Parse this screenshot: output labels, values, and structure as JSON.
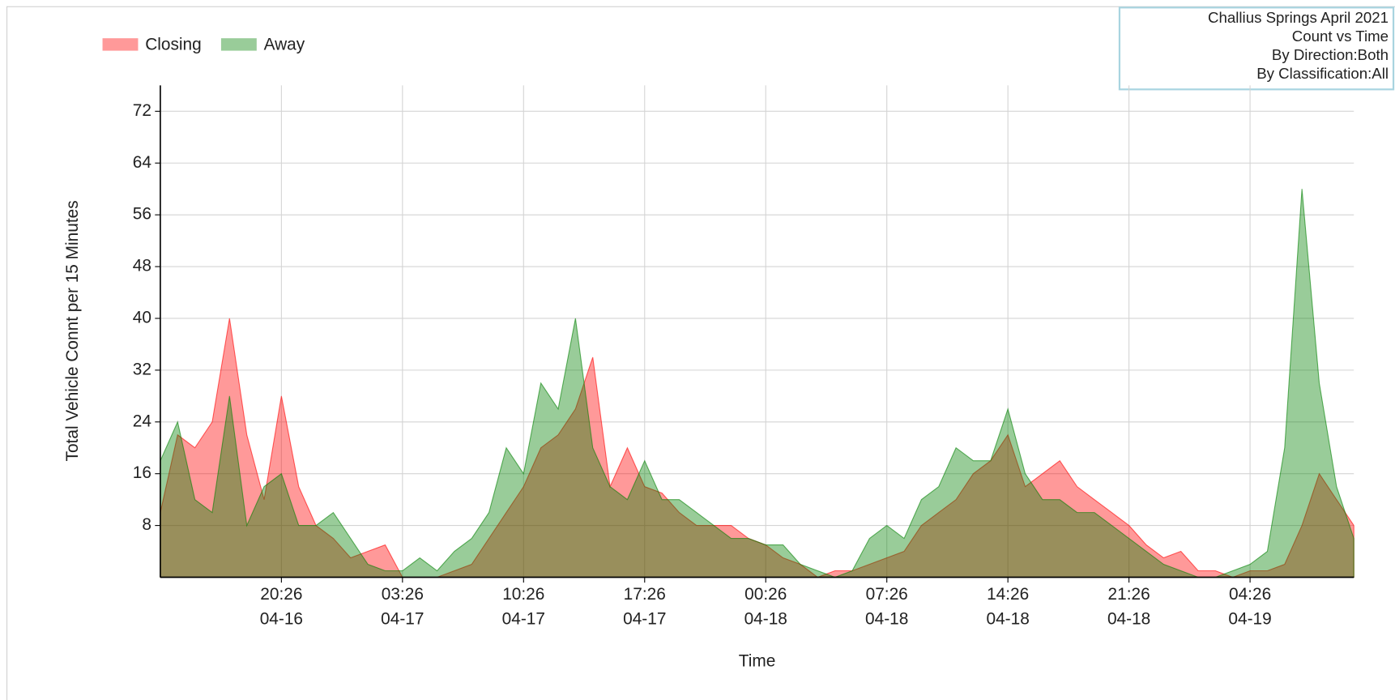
{
  "chart_data": {
    "type": "area",
    "info": [
      "Challius Springs April 2021",
      "Count vs Time",
      "By Direction:Both",
      "By Classification:All"
    ],
    "x_label": "Time",
    "y_label": "Total Vehicle Connt per 15 Minutes",
    "legend": "top-left",
    "grid": true,
    "ylim": [
      0,
      76
    ],
    "yticks": [
      8,
      16,
      24,
      32,
      40,
      48,
      56,
      64,
      72
    ],
    "xlim": [
      "04-16 13:26",
      "04-19 10:26"
    ],
    "xticks": [
      {
        "value": "04-16 20:26",
        "label": [
          "20:26",
          "04-16"
        ]
      },
      {
        "value": "04-17 03:26",
        "label": [
          "03:26",
          "04-17"
        ]
      },
      {
        "value": "04-17 10:26",
        "label": [
          "10:26",
          "04-17"
        ]
      },
      {
        "value": "04-17 17:26",
        "label": [
          "17:26",
          "04-17"
        ]
      },
      {
        "value": "04-18 00:26",
        "label": [
          "00:26",
          "04-18"
        ]
      },
      {
        "value": "04-18 07:26",
        "label": [
          "07:26",
          "04-18"
        ]
      },
      {
        "value": "04-18 14:26",
        "label": [
          "14:26",
          "04-18"
        ]
      },
      {
        "value": "04-18 21:26",
        "label": [
          "21:26",
          "04-18"
        ]
      },
      {
        "value": "04-19 04:26",
        "label": [
          "04:26",
          "04-19"
        ]
      }
    ],
    "x": [
      "04-16 13:26",
      "04-16 14:26",
      "04-16 15:26",
      "04-16 16:26",
      "04-16 17:26",
      "04-16 18:26",
      "04-16 19:26",
      "04-16 20:26",
      "04-16 21:26",
      "04-16 22:26",
      "04-16 23:26",
      "04-17 00:26",
      "04-17 01:26",
      "04-17 02:26",
      "04-17 03:26",
      "04-17 04:26",
      "04-17 05:26",
      "04-17 06:26",
      "04-17 07:26",
      "04-17 08:26",
      "04-17 09:26",
      "04-17 10:26",
      "04-17 11:26",
      "04-17 12:26",
      "04-17 13:26",
      "04-17 14:26",
      "04-17 15:26",
      "04-17 16:26",
      "04-17 17:26",
      "04-17 18:26",
      "04-17 19:26",
      "04-17 20:26",
      "04-17 21:26",
      "04-17 22:26",
      "04-17 23:26",
      "04-18 00:26",
      "04-18 01:26",
      "04-18 02:26",
      "04-18 03:26",
      "04-18 04:26",
      "04-18 05:26",
      "04-18 06:26",
      "04-18 07:26",
      "04-18 08:26",
      "04-18 09:26",
      "04-18 10:26",
      "04-18 11:26",
      "04-18 12:26",
      "04-18 13:26",
      "04-18 14:26",
      "04-18 15:26",
      "04-18 16:26",
      "04-18 17:26",
      "04-18 18:26",
      "04-18 19:26",
      "04-18 20:26",
      "04-18 21:26",
      "04-18 22:26",
      "04-18 23:26",
      "04-19 00:26",
      "04-19 01:26",
      "04-19 02:26",
      "04-19 03:26",
      "04-19 04:26",
      "04-19 05:26",
      "04-19 06:26",
      "04-19 07:26",
      "04-19 08:26",
      "04-19 09:26",
      "04-19 10:26"
    ],
    "series": [
      {
        "name": "Closing",
        "color": "#ff0000",
        "values": [
          10,
          22,
          20,
          24,
          40,
          22,
          12,
          28,
          14,
          8,
          6,
          3,
          4,
          5,
          0,
          0,
          0,
          1,
          2,
          6,
          10,
          14,
          20,
          22,
          26,
          34,
          14,
          20,
          14,
          13,
          10,
          8,
          8,
          8,
          6,
          5,
          3,
          2,
          0,
          1,
          1,
          2,
          3,
          4,
          8,
          10,
          12,
          16,
          18,
          22,
          14,
          16,
          18,
          14,
          12,
          10,
          8,
          5,
          3,
          4,
          1,
          1,
          0,
          1,
          1,
          2,
          8,
          16,
          12,
          8
        ]
      },
      {
        "name": "Away",
        "color": "#008000",
        "values": [
          18,
          24,
          12,
          10,
          28,
          8,
          14,
          16,
          8,
          8,
          10,
          6,
          2,
          1,
          1,
          3,
          1,
          4,
          6,
          10,
          20,
          16,
          30,
          26,
          40,
          20,
          14,
          12,
          18,
          12,
          12,
          10,
          8,
          6,
          6,
          5,
          5,
          2,
          1,
          0,
          1,
          6,
          8,
          6,
          12,
          14,
          20,
          18,
          18,
          26,
          16,
          12,
          12,
          10,
          10,
          8,
          6,
          4,
          2,
          1,
          0,
          0,
          1,
          2,
          4,
          20,
          60,
          30,
          14,
          6
        ]
      }
    ]
  }
}
